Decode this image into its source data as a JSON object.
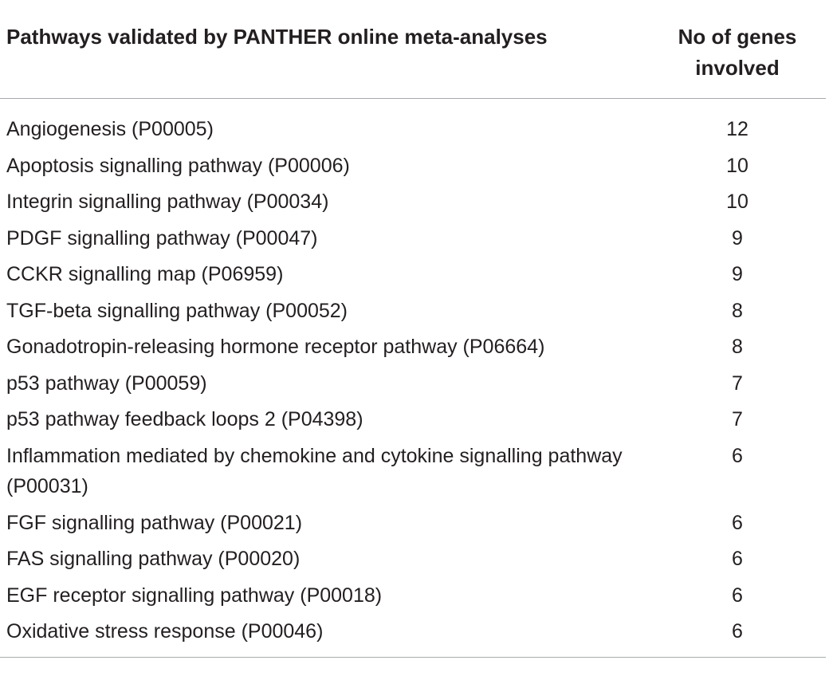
{
  "table": {
    "headers": {
      "pathway": "Pathways validated by PANTHER online meta-analyses",
      "genes_line1": "No of genes",
      "genes_line2": "involved"
    },
    "rows": [
      {
        "pathway": "Angiogenesis (P00005)",
        "genes": "12"
      },
      {
        "pathway": "Apoptosis signalling pathway (P00006)",
        "genes": "10"
      },
      {
        "pathway": "Integrin signalling pathway (P00034)",
        "genes": "10"
      },
      {
        "pathway": "PDGF signalling pathway (P00047)",
        "genes": "9"
      },
      {
        "pathway": "CCKR signalling map (P06959)",
        "genes": "9"
      },
      {
        "pathway": "TGF-beta signalling pathway (P00052)",
        "genes": "8"
      },
      {
        "pathway": "Gonadotropin-releasing hormone receptor pathway (P06664)",
        "genes": "8"
      },
      {
        "pathway": "p53 pathway (P00059)",
        "genes": "7"
      },
      {
        "pathway": "p53 pathway feedback loops 2 (P04398)",
        "genes": "7"
      },
      {
        "pathway": "Inflammation mediated by chemokine and cytokine signalling pathway (P00031)",
        "genes": "6"
      },
      {
        "pathway": "FGF signalling pathway (P00021)",
        "genes": "6"
      },
      {
        "pathway": "FAS signalling pathway (P00020)",
        "genes": "6"
      },
      {
        "pathway": "EGF receptor signalling pathway (P00018)",
        "genes": "6"
      },
      {
        "pathway": "Oxidative stress response (P00046)",
        "genes": "6"
      }
    ]
  }
}
